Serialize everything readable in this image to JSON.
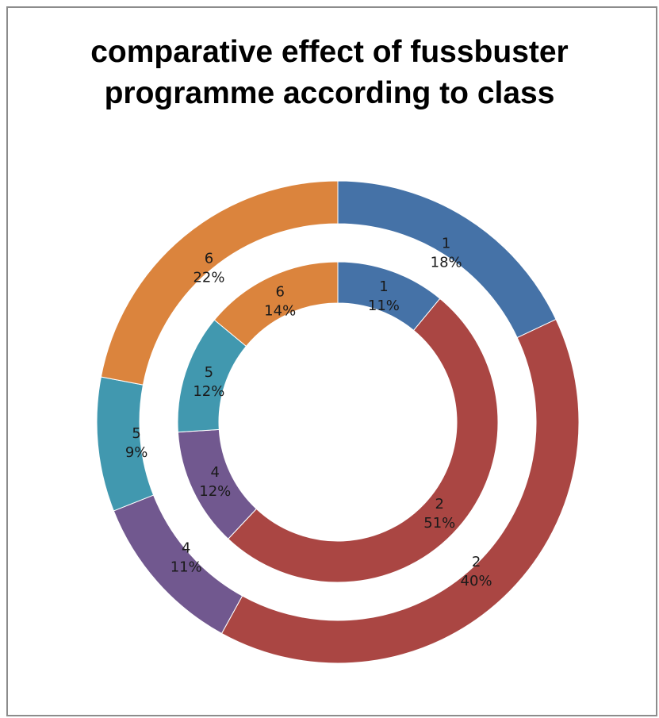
{
  "chart_data": {
    "type": "doughnut",
    "title": "comparative effect of fussbuster programme according to class",
    "categories": [
      "1",
      "2",
      "4",
      "5",
      "6"
    ],
    "colors": [
      "#4572a7",
      "#aa4643",
      "#71588f",
      "#4198af",
      "#db843d"
    ],
    "series": [
      {
        "ring": "outer",
        "values": [
          18,
          40,
          11,
          9,
          22
        ],
        "labels": [
          "18%",
          "40%",
          "11%",
          "9%",
          "22%"
        ]
      },
      {
        "ring": "inner",
        "values": [
          11,
          51,
          12,
          12,
          14
        ],
        "labels": [
          "11%",
          "51%",
          "12%",
          "12%",
          "14%"
        ]
      }
    ]
  },
  "title_lines": [
    "comparative effect of fussbuster",
    "programme according to class"
  ]
}
